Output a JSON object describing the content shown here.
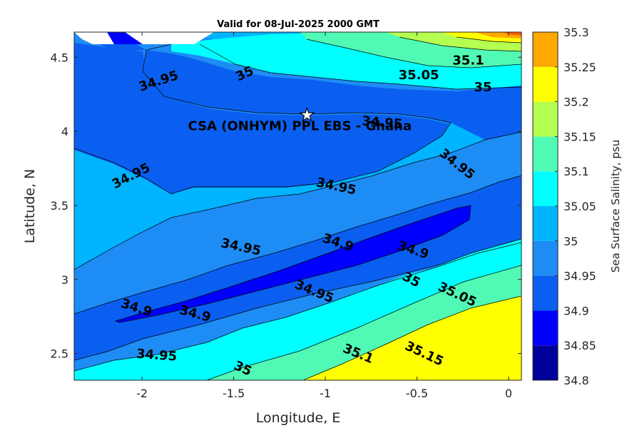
{
  "chart_data": {
    "type": "contour",
    "title": "Valid for 08-Jul-2025 2000 GMT",
    "xlabel": "Longitude, E",
    "ylabel": "Latitude, N",
    "colorbar_label": "Sea Surface Salinity, psu",
    "xlim": [
      -2.37,
      0.07
    ],
    "ylim": [
      2.32,
      4.67
    ],
    "xticks": [
      {
        "value": -2,
        "label": "-2"
      },
      {
        "value": -1.5,
        "label": "-1.5"
      },
      {
        "value": -1,
        "label": "-1"
      },
      {
        "value": -0.5,
        "label": "-0.5"
      },
      {
        "value": 0,
        "label": "0"
      }
    ],
    "yticks": [
      {
        "value": 2.5,
        "label": "2.5"
      },
      {
        "value": 3,
        "label": "3"
      },
      {
        "value": 3.5,
        "label": "3.5"
      },
      {
        "value": 4,
        "label": "4"
      },
      {
        "value": 4.5,
        "label": "4.5"
      }
    ],
    "colorbar": {
      "levels": [
        34.8,
        34.85,
        34.9,
        34.95,
        35,
        35.05,
        35.1,
        35.15,
        35.2,
        35.25,
        35.3
      ],
      "tick_labels": [
        "34.8",
        "34.85",
        "34.9",
        "34.95",
        "35",
        "35.05",
        "35.1",
        "35.15",
        "35.2",
        "35.25",
        "35.3"
      ],
      "colors": [
        "#00009b",
        "#0000ff",
        "#0a5ff0",
        "#1e8cf5",
        "#00b4ff",
        "#00ffff",
        "#50fab4",
        "#b4ff50",
        "#ffff00",
        "#ffa800",
        "#ff5a00"
      ]
    },
    "site": {
      "name": "CSA (ONHYM) PPL EBS  - Ghana",
      "lon": -1.1,
      "lat": 4.11
    },
    "contour_labels": [
      {
        "text": "34.95",
        "lon": -1.91,
        "lat": 4.34,
        "angle": 18
      },
      {
        "text": "35",
        "lon": -1.44,
        "lat": 4.39,
        "angle": 25
      },
      {
        "text": "35.05",
        "lon": -0.49,
        "lat": 4.38,
        "angle": 0
      },
      {
        "text": "35.1",
        "lon": -0.22,
        "lat": 4.48,
        "angle": 0
      },
      {
        "text": "35",
        "lon": -0.14,
        "lat": 4.3,
        "angle": 0
      },
      {
        "text": "34.95",
        "lon": -0.69,
        "lat": 4.06,
        "angle": -5
      },
      {
        "text": "34.95",
        "lon": -2.06,
        "lat": 3.7,
        "angle": 27
      },
      {
        "text": "34.95",
        "lon": -0.94,
        "lat": 3.63,
        "angle": -12
      },
      {
        "text": "34.95",
        "lon": -0.28,
        "lat": 3.78,
        "angle": -38
      },
      {
        "text": "34.95",
        "lon": -1.46,
        "lat": 3.22,
        "angle": -12
      },
      {
        "text": "34.9",
        "lon": -0.93,
        "lat": 3.25,
        "angle": -18
      },
      {
        "text": "34.9",
        "lon": -0.52,
        "lat": 3.2,
        "angle": -18
      },
      {
        "text": "34.9",
        "lon": -2.03,
        "lat": 2.81,
        "angle": -18
      },
      {
        "text": "34.9",
        "lon": -1.71,
        "lat": 2.77,
        "angle": -15
      },
      {
        "text": "34.95",
        "lon": -1.06,
        "lat": 2.92,
        "angle": -22
      },
      {
        "text": "35",
        "lon": -0.53,
        "lat": 3.0,
        "angle": -28
      },
      {
        "text": "35.05",
        "lon": -0.28,
        "lat": 2.9,
        "angle": -25
      },
      {
        "text": "35.1",
        "lon": -0.82,
        "lat": 2.5,
        "angle": -22
      },
      {
        "text": "35.15",
        "lon": -0.46,
        "lat": 2.5,
        "angle": -25
      },
      {
        "text": "34.95",
        "lon": -1.92,
        "lat": 2.49,
        "angle": -4
      },
      {
        "text": "35",
        "lon": -1.45,
        "lat": 2.4,
        "angle": -25
      }
    ]
  }
}
